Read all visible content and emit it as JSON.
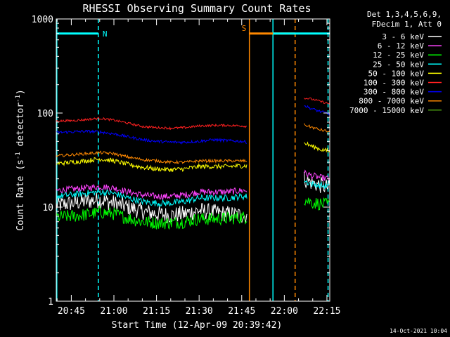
{
  "chart_data": {
    "type": "line",
    "title": "RHESSI Observing Summary Count Rates",
    "xlabel": "Start Time (12-Apr-09 20:39:42)",
    "ylabel_main": "Count Rate (s",
    "ylabel_sup1": "-1",
    "ylabel_mid": " detector",
    "ylabel_sup2": "-1",
    "ylabel_end": ")",
    "yscale": "log",
    "ylim": [
      1,
      1000
    ],
    "xlim_min": [
      39.7,
      136.0
    ],
    "x_unit": "minutes after 20:00 on 12-Apr-09",
    "x_ticks": [
      {
        "min": 45,
        "label": "20:45"
      },
      {
        "min": 60,
        "label": "21:00"
      },
      {
        "min": 75,
        "label": "21:15"
      },
      {
        "min": 90,
        "label": "21:30"
      },
      {
        "min": 105,
        "label": "21:45"
      },
      {
        "min": 120,
        "label": "22:00"
      },
      {
        "min": 135,
        "label": "22:15"
      }
    ],
    "y_ticks": [
      {
        "value": 1,
        "label": "1"
      },
      {
        "value": 10,
        "label": "10"
      },
      {
        "value": 100,
        "label": "100"
      },
      {
        "value": 1000,
        "label": "1000"
      }
    ],
    "legend_header": [
      "Det 1,3,4,5,6,9,",
      "FDecim 1, Att 0"
    ],
    "series": [
      {
        "name": "3 - 6 keV",
        "color": "#ffffff",
        "x": [
          39.7,
          45,
          50,
          55,
          60,
          65,
          70,
          75,
          80,
          85,
          90,
          95,
          100,
          105,
          106.8,
          127,
          130,
          133,
          136
        ],
        "y": [
          10.5,
          11,
          11.5,
          12,
          11,
          10,
          9,
          8.5,
          8.2,
          8.5,
          9.2,
          8.8,
          8.5,
          8.2,
          8,
          20,
          18,
          17,
          16
        ]
      },
      {
        "name": "6 - 12 keV",
        "color": "#ff44ff",
        "x": [
          39.7,
          45,
          50,
          55,
          60,
          65,
          70,
          75,
          80,
          85,
          90,
          95,
          100,
          105,
          106.8,
          127,
          130,
          133,
          136
        ],
        "y": [
          15,
          15.5,
          16,
          16.5,
          16,
          14.5,
          13.5,
          13,
          13,
          13.5,
          14.5,
          14.5,
          14.5,
          15,
          15,
          23,
          21.5,
          20.5,
          20
        ]
      },
      {
        "name": "12 - 25 keV",
        "color": "#00ff00",
        "x": [
          39.7,
          45,
          50,
          55,
          60,
          65,
          70,
          75,
          80,
          85,
          90,
          95,
          100,
          105,
          106.8,
          127,
          130,
          133,
          136
        ],
        "y": [
          7.8,
          8,
          8.3,
          8.8,
          8.5,
          7.6,
          7,
          6.8,
          6.8,
          7,
          7.5,
          7.5,
          7.6,
          7.8,
          7.8,
          12,
          11.2,
          10.8,
          10.5
        ]
      },
      {
        "name": "25 - 50 keV",
        "color": "#00ffff",
        "x": [
          39.7,
          45,
          50,
          55,
          60,
          65,
          70,
          75,
          80,
          85,
          90,
          95,
          100,
          105,
          106.8,
          127,
          130,
          133,
          136
        ],
        "y": [
          13,
          13.5,
          14,
          14.5,
          14,
          12.5,
          11.5,
          11,
          11,
          11.5,
          12.5,
          12.5,
          12.5,
          13,
          13,
          19,
          17.5,
          17,
          16.5
        ]
      },
      {
        "name": "50 - 100 keV",
        "color": "#ffff00",
        "x": [
          39.7,
          45,
          50,
          55,
          60,
          65,
          70,
          75,
          80,
          85,
          90,
          95,
          100,
          105,
          106.8,
          127,
          130,
          133,
          136
        ],
        "y": [
          29,
          30,
          31,
          32.5,
          31,
          28.5,
          26.5,
          25.5,
          25,
          25.5,
          27,
          27,
          27,
          27.5,
          27.5,
          48,
          44,
          41,
          39
        ]
      },
      {
        "name": "100 - 300 keV",
        "color": "#ff2020",
        "x": [
          39.7,
          45,
          50,
          55,
          60,
          65,
          70,
          75,
          80,
          85,
          90,
          95,
          100,
          105,
          106.8,
          127,
          130,
          133,
          136
        ],
        "y": [
          82,
          83,
          85,
          88,
          84,
          78,
          72,
          70,
          69,
          70,
          73,
          74,
          74,
          73,
          72,
          145,
          140,
          132,
          125
        ]
      },
      {
        "name": "300 - 800 keV",
        "color": "#0000ff",
        "x": [
          39.7,
          45,
          50,
          55,
          60,
          65,
          70,
          75,
          80,
          85,
          90,
          95,
          100,
          105,
          106.8,
          127,
          130,
          133,
          136
        ],
        "y": [
          62,
          63,
          64,
          63,
          60,
          56,
          52,
          50,
          49,
          49,
          50,
          52,
          51,
          50,
          49,
          120,
          110,
          103,
          98
        ]
      },
      {
        "name": "800 - 7000 keV",
        "color": "#ff8800",
        "x": [
          39.7,
          45,
          50,
          55,
          60,
          65,
          70,
          75,
          80,
          85,
          90,
          95,
          100,
          105,
          106.8,
          127,
          130,
          133,
          136
        ],
        "y": [
          35,
          36,
          37,
          38,
          37,
          34,
          32,
          31,
          30,
          30,
          31,
          31,
          31,
          31,
          31,
          75,
          70,
          66,
          63
        ]
      },
      {
        "name": "7000 - 15000 keV",
        "color": "#4a9a10",
        "x": [],
        "y": []
      }
    ],
    "state_bars": [
      {
        "x_min": [
          39.7,
          54.5
        ],
        "value": 700,
        "color": "#00ffff"
      },
      {
        "x_min": [
          107.7,
          123.8
        ],
        "value": 700,
        "color": "#ff8800"
      },
      {
        "x_min": [
          116.0,
          136.0
        ],
        "value": 700,
        "color": "#00ffff"
      }
    ],
    "state_labels": [
      {
        "text": "N",
        "x_min": 56.0,
        "value": 700,
        "color": "#00ffff"
      },
      {
        "text": "S",
        "x_min": 105.0,
        "value": 800,
        "color": "#ff8800"
      }
    ],
    "vertical_lines": [
      {
        "x_min": 39.9,
        "color": "#00ffff",
        "dashed": false
      },
      {
        "x_min": 54.5,
        "color": "#00ffff",
        "dashed": true
      },
      {
        "x_min": 107.7,
        "color": "#ff8800",
        "dashed": false
      },
      {
        "x_min": 116.0,
        "color": "#00ffff",
        "dashed": false
      },
      {
        "x_min": 123.8,
        "color": "#ff8800",
        "dashed": true
      },
      {
        "x_min": 135.4,
        "color": "#00ffff",
        "dashed": true
      }
    ]
  },
  "footer_timestamp": "14-Oct-2021 10:04"
}
